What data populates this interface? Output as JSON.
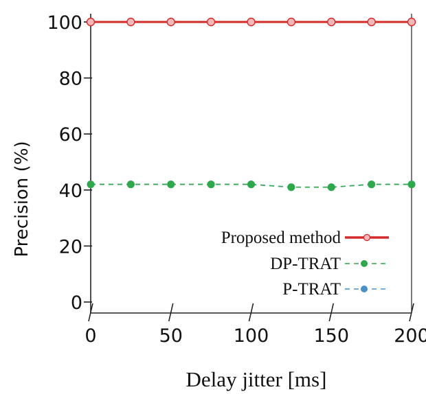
{
  "chart_data": {
    "type": "line",
    "xlabel": "Delay jitter [ms]",
    "ylabel": "Precision (%)",
    "xlim": [
      0,
      200
    ],
    "ylim": [
      0,
      100
    ],
    "x_ticks": [
      0,
      50,
      100,
      150,
      200
    ],
    "y_ticks": [
      0,
      20,
      40,
      60,
      80,
      100
    ],
    "grid": false,
    "legend_position": "bottom-right",
    "x": [
      0,
      25,
      50,
      75,
      100,
      125,
      150,
      175,
      200
    ],
    "series": [
      {
        "name": "Proposed method",
        "color": "#d32a2a",
        "style": "solid",
        "values": [
          100,
          100,
          100,
          100,
          100,
          100,
          100,
          100,
          100
        ]
      },
      {
        "name": "DP-TRAT",
        "color": "#2ea84a",
        "style": "dashed",
        "values": [
          42,
          42,
          42,
          42,
          42,
          41,
          41,
          42,
          42
        ]
      },
      {
        "name": "P-TRAT",
        "color": "#4a90c8",
        "style": "dashed",
        "values": [
          42,
          42,
          42,
          42,
          42,
          41,
          41,
          42,
          42
        ]
      }
    ]
  }
}
